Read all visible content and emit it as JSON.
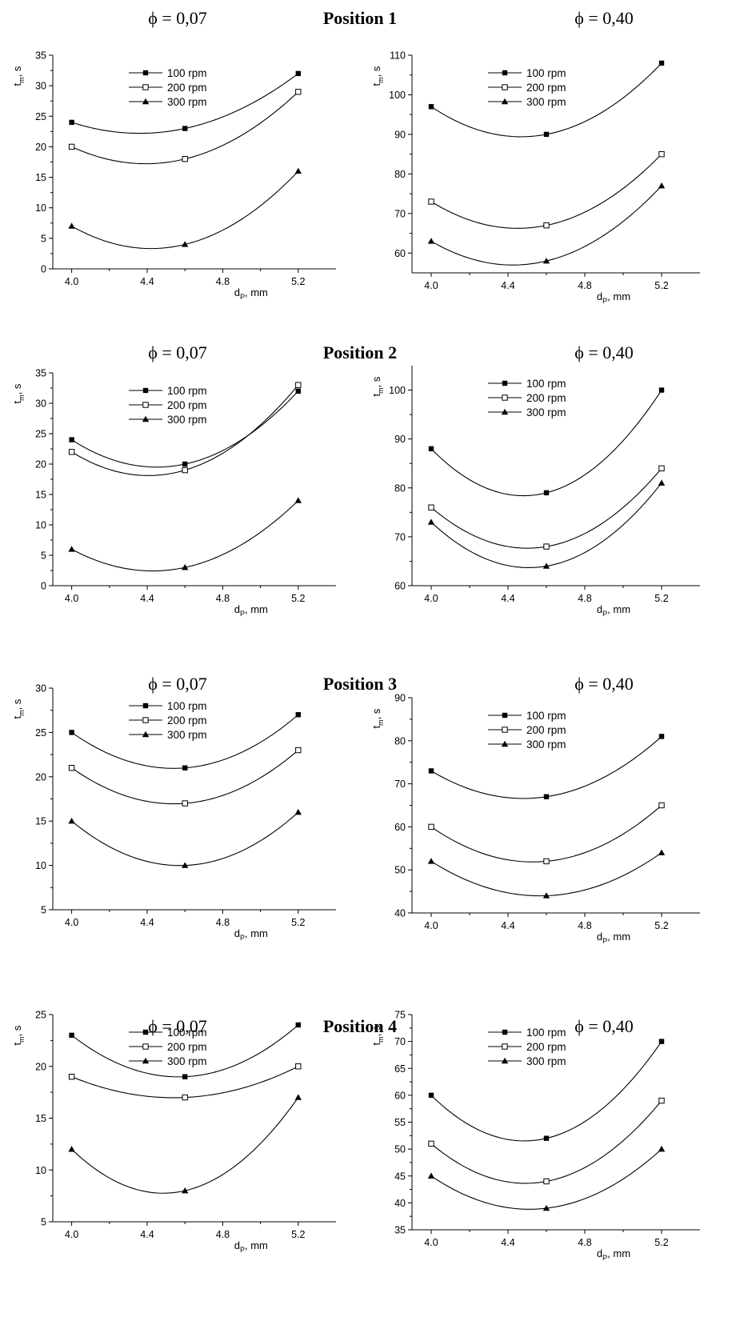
{
  "rows": [
    {
      "left_header": "ϕ = 0,07",
      "center_header": "Position 1",
      "right_header": "ϕ = 0,40"
    },
    {
      "left_header": "ϕ = 0,07",
      "center_header": "Position 2",
      "right_header": "ϕ = 0,40"
    },
    {
      "left_header": "ϕ = 0,07",
      "center_header": "Position 3",
      "right_header": "ϕ = 0,40"
    },
    {
      "left_header": "ϕ = 0,07",
      "center_header": "Position 4",
      "right_header": "ϕ = 0,40"
    }
  ],
  "axis_text": {
    "x_main": "d",
    "x_sub": "P",
    "x_unit": ", mm",
    "y_main": "t",
    "y_sub": "m",
    "y_unit": ", s"
  },
  "chart_data": [
    {
      "type": "line",
      "x": [
        4.0,
        4.6,
        5.2
      ],
      "xticks": [
        4.0,
        4.4,
        4.8,
        5.2
      ],
      "xlim": [
        3.9,
        5.4
      ],
      "ylim": [
        0,
        35
      ],
      "yticks": [
        0,
        5,
        10,
        15,
        20,
        25,
        30,
        35
      ],
      "legend": "top-left",
      "series": [
        {
          "name": "100 rpm",
          "values": [
            24,
            23,
            32
          ]
        },
        {
          "name": "200 rpm",
          "values": [
            20,
            18,
            29
          ]
        },
        {
          "name": "300 rpm",
          "values": [
            7,
            4,
            16
          ]
        }
      ]
    },
    {
      "type": "line",
      "x": [
        4.0,
        4.6,
        5.2
      ],
      "xticks": [
        4.0,
        4.4,
        4.8,
        5.2
      ],
      "xlim": [
        3.9,
        5.4
      ],
      "ylim": [
        55,
        110
      ],
      "yticks": [
        60,
        70,
        80,
        90,
        100,
        110
      ],
      "legend": "top-left",
      "series": [
        {
          "name": "100 rpm",
          "values": [
            97,
            90,
            108
          ]
        },
        {
          "name": "200 rpm",
          "values": [
            73,
            67,
            85
          ]
        },
        {
          "name": "300 rpm",
          "values": [
            63,
            58,
            77
          ]
        }
      ]
    },
    {
      "type": "line",
      "x": [
        4.0,
        4.6,
        5.2
      ],
      "xticks": [
        4.0,
        4.4,
        4.8,
        5.2
      ],
      "xlim": [
        3.9,
        5.4
      ],
      "ylim": [
        0,
        35
      ],
      "yticks": [
        0,
        5,
        10,
        15,
        20,
        25,
        30,
        35
      ],
      "legend": "top-left",
      "series": [
        {
          "name": "100 rpm",
          "values": [
            24,
            20,
            32
          ]
        },
        {
          "name": "200 rpm",
          "values": [
            22,
            19,
            33
          ]
        },
        {
          "name": "300 rpm",
          "values": [
            6,
            3,
            14
          ]
        }
      ]
    },
    {
      "type": "line",
      "x": [
        4.0,
        4.6,
        5.2
      ],
      "xticks": [
        4.0,
        4.4,
        4.8,
        5.2
      ],
      "xlim": [
        3.9,
        5.4
      ],
      "ylim": [
        60,
        105
      ],
      "yticks": [
        60,
        70,
        80,
        90,
        100
      ],
      "legend": "top-left",
      "series": [
        {
          "name": "100 rpm",
          "values": [
            88,
            79,
            100
          ]
        },
        {
          "name": "200 rpm",
          "values": [
            76,
            68,
            84
          ]
        },
        {
          "name": "300 rpm",
          "values": [
            73,
            64,
            81
          ]
        }
      ]
    },
    {
      "type": "line",
      "x": [
        4.0,
        4.6,
        5.2
      ],
      "xticks": [
        4.0,
        4.4,
        4.8,
        5.2
      ],
      "xlim": [
        3.9,
        5.4
      ],
      "ylim": [
        5,
        30
      ],
      "yticks": [
        5,
        10,
        15,
        20,
        25,
        30
      ],
      "legend": "top-left",
      "series": [
        {
          "name": "100 rpm",
          "values": [
            25,
            21,
            27
          ]
        },
        {
          "name": "200 rpm",
          "values": [
            21,
            17,
            23
          ]
        },
        {
          "name": "300 rpm",
          "values": [
            15,
            10,
            16
          ]
        }
      ]
    },
    {
      "type": "line",
      "x": [
        4.0,
        4.6,
        5.2
      ],
      "xticks": [
        4.0,
        4.4,
        4.8,
        5.2
      ],
      "xlim": [
        3.9,
        5.4
      ],
      "ylim": [
        40,
        90
      ],
      "yticks": [
        40,
        50,
        60,
        70,
        80,
        90
      ],
      "legend": "top-left",
      "series": [
        {
          "name": "100 rpm",
          "values": [
            73,
            67,
            81
          ]
        },
        {
          "name": "200 rpm",
          "values": [
            60,
            52,
            65
          ]
        },
        {
          "name": "300 rpm",
          "values": [
            52,
            44,
            54
          ]
        }
      ]
    },
    {
      "type": "line",
      "x": [
        4.0,
        4.6,
        5.2
      ],
      "xticks": [
        4.0,
        4.4,
        4.8,
        5.2
      ],
      "xlim": [
        3.9,
        5.4
      ],
      "ylim": [
        5,
        25
      ],
      "yticks": [
        5,
        10,
        15,
        20,
        25
      ],
      "legend": "top-left",
      "series": [
        {
          "name": "100 rpm",
          "values": [
            23,
            19,
            24
          ]
        },
        {
          "name": "200 rpm",
          "values": [
            19,
            17,
            20
          ]
        },
        {
          "name": "300 rpm",
          "values": [
            12,
            8,
            17
          ]
        }
      ]
    },
    {
      "type": "line",
      "x": [
        4.0,
        4.6,
        5.2
      ],
      "xticks": [
        4.0,
        4.4,
        4.8,
        5.2
      ],
      "xlim": [
        3.9,
        5.4
      ],
      "ylim": [
        35,
        75
      ],
      "yticks": [
        35,
        40,
        45,
        50,
        55,
        60,
        65,
        70,
        75
      ],
      "legend": "top-left",
      "series": [
        {
          "name": "100 rpm",
          "values": [
            60,
            52,
            70
          ]
        },
        {
          "name": "200 rpm",
          "values": [
            51,
            44,
            59
          ]
        },
        {
          "name": "300 rpm",
          "values": [
            45,
            39,
            50
          ]
        }
      ]
    }
  ]
}
